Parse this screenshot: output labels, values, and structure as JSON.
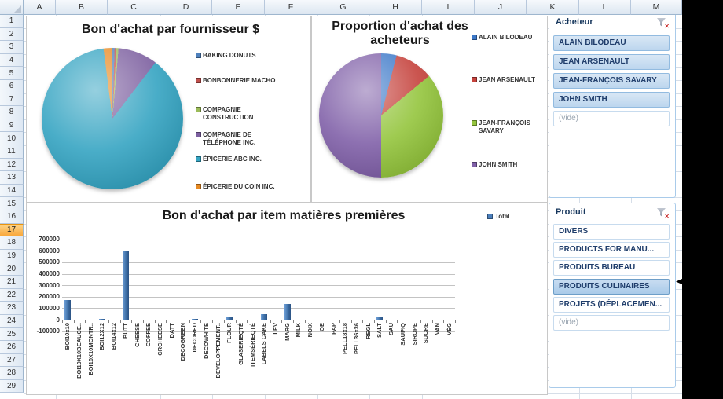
{
  "app": {
    "type": "excel-worksheet-with-pivot-charts"
  },
  "grid": {
    "columns": [
      "A",
      "B",
      "C",
      "D",
      "E",
      "F",
      "G",
      "H",
      "I",
      "J",
      "K",
      "L",
      "M"
    ],
    "rows": [
      "1",
      "2",
      "3",
      "4",
      "5",
      "6",
      "7",
      "8",
      "9",
      "10",
      "11",
      "12",
      "13",
      "14",
      "15",
      "16",
      "17",
      "18",
      "19",
      "20",
      "21",
      "22",
      "23",
      "24",
      "25",
      "26",
      "27",
      "28",
      "29"
    ],
    "selected_row": "17"
  },
  "chart_data": [
    {
      "type": "pie",
      "title": "Bon d'achat par fournisseur $",
      "labels": [
        "BAKING DONUTS",
        "BONBONNERIE MACHO",
        "COMPAGNIE CONSTRUCTION",
        "COMPAGNIE DE TÉLÉPHONE INC.",
        "ÉPICERIE ABC INC.",
        "ÉPICERIE DU COIN INC."
      ],
      "values_pct": [
        0.5,
        0.4,
        0.5,
        9,
        87.6,
        2
      ],
      "colors": [
        "#4F81BD",
        "#C0504D",
        "#9BBB59",
        "#7D60A0",
        "#35A4C2",
        "#E78A23"
      ],
      "legend_position": "right"
    },
    {
      "type": "pie",
      "title": "Proportion d'achat des acheteurs",
      "labels": [
        "ALAIN BILODEAU",
        "JEAN ARSENAULT",
        "JEAN-FRANÇOIS SAVARY",
        "JOHN SMITH"
      ],
      "values_pct": [
        4,
        10,
        36,
        50
      ],
      "colors": [
        "#3C78C8",
        "#C5423C",
        "#94C53D",
        "#8060A8"
      ],
      "legend_position": "right"
    },
    {
      "type": "bar",
      "title": "Bon d'achat par item matières premières",
      "categories": [
        "BOI10x10",
        "BOI10X10BEAUCE..",
        "BOI10X10MONTR..",
        "BOI12X12",
        "BOI14x12",
        "BUTT",
        "CHEESE",
        "COFFEE",
        "CRCHEESE",
        "DATT",
        "DECOGREEN",
        "DECORED",
        "DECOWHITE",
        "DEVELOPPEMENT..",
        "FLOUR",
        "GLASERIEQTÉ",
        "ITEMSÉRIEQTÉ",
        "LABELS CAKE",
        "LEV",
        "MARG",
        "MILK",
        "NOIX",
        "OE",
        "PAP",
        "PELL18x18",
        "PELL36x36",
        "REGL",
        "SALT",
        "SAU",
        "SAUPIQ",
        "SIROPE",
        "SUCRE",
        "VAN",
        "VÉG"
      ],
      "series": [
        {
          "name": "Total",
          "color": "#3D6EA5",
          "values": [
            170000,
            0,
            0,
            9000,
            0,
            600000,
            0,
            0,
            0,
            0,
            0,
            9000,
            0,
            0,
            28000,
            0,
            0,
            50000,
            0,
            140000,
            0,
            0,
            0,
            0,
            0,
            0,
            0,
            20000,
            0,
            0,
            0,
            0,
            0,
            0
          ]
        }
      ],
      "ylim": [
        -100000,
        700000
      ],
      "ytick_step": 100000,
      "yticks": [
        "700000",
        "600000",
        "500000",
        "400000",
        "300000",
        "200000",
        "100000",
        "0",
        "-100000"
      ],
      "grid": true,
      "legend_position": "top-right"
    }
  ],
  "slicers": [
    {
      "title": "Acheteur",
      "clear_filter_icon": "funnel-x-icon",
      "items": [
        {
          "label": "ALAIN BILODEAU",
          "selected": true
        },
        {
          "label": "JEAN ARSENAULT",
          "selected": true
        },
        {
          "label": "JEAN-FRANÇOIS SAVARY",
          "selected": true
        },
        {
          "label": "JOHN SMITH",
          "selected": true
        },
        {
          "label": "(vide)",
          "selected": false,
          "empty": true
        }
      ]
    },
    {
      "title": "Produit",
      "clear_filter_icon": "funnel-x-icon",
      "items": [
        {
          "label": "DIVERS",
          "selected": false
        },
        {
          "label": "PRODUCTS FOR MANU...",
          "selected": false
        },
        {
          "label": "PRODUITS BUREAU",
          "selected": false
        },
        {
          "label": "PRODUITS CULINAIRES",
          "selected": true
        },
        {
          "label": "PROJETS (DÉPLACEMEN...",
          "selected": false
        },
        {
          "label": "(vide)",
          "selected": false,
          "empty": true
        }
      ]
    }
  ],
  "ui_colors": {
    "slicer_selected_fill": "#BCD6EE",
    "row_highlight": "#F9A83C",
    "bar_series": "#3D6EA5"
  }
}
